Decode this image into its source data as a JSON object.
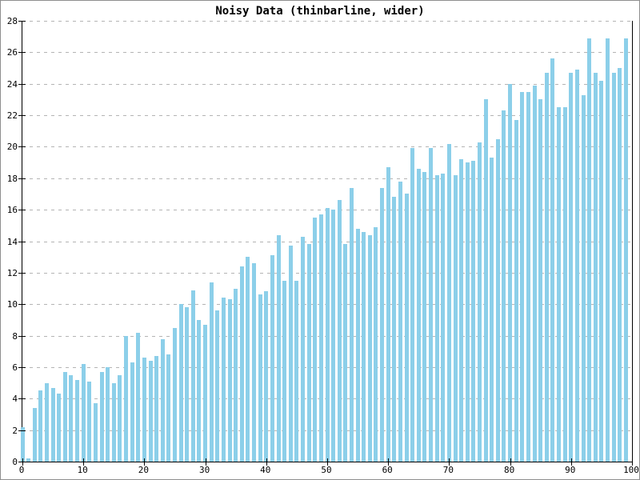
{
  "chart_data": {
    "type": "bar",
    "title": "Noisy Data (thinbarline, wider)",
    "xlabel": "",
    "ylabel": "",
    "x_start": 0,
    "x_step": 1,
    "values": [
      2.2,
      0.2,
      3.4,
      4.5,
      5.0,
      4.7,
      4.3,
      5.7,
      5.5,
      5.2,
      6.2,
      5.1,
      3.7,
      5.7,
      6.0,
      5.0,
      5.5,
      8.0,
      6.3,
      8.2,
      6.6,
      6.4,
      6.7,
      7.8,
      6.8,
      8.5,
      10.0,
      9.8,
      10.9,
      9.0,
      8.7,
      11.4,
      9.6,
      10.4,
      10.3,
      11.0,
      12.4,
      13.0,
      12.6,
      10.6,
      10.8,
      13.1,
      14.4,
      11.5,
      13.7,
      11.5,
      14.3,
      13.8,
      15.5,
      15.7,
      16.1,
      16.0,
      16.6,
      13.8,
      17.4,
      14.8,
      14.6,
      14.4,
      14.9,
      17.4,
      18.7,
      16.8,
      17.8,
      17.0,
      19.9,
      18.6,
      18.4,
      19.9,
      18.2,
      18.3,
      20.2,
      18.2,
      19.2,
      19.0,
      19.1,
      20.3,
      23.0,
      19.3,
      20.5,
      22.3,
      24.0,
      21.7,
      23.5,
      23.5,
      23.9,
      23.0,
      24.7,
      25.6,
      22.5,
      22.5,
      24.7,
      24.9,
      23.3,
      26.9,
      24.7,
      24.2,
      26.9,
      24.7,
      25.0,
      26.9
    ],
    "xlim": [
      0,
      100
    ],
    "ylim": [
      0,
      28
    ],
    "x_ticks": [
      0,
      10,
      20,
      30,
      40,
      50,
      60,
      70,
      80,
      90,
      100
    ],
    "y_ticks": [
      0,
      2,
      4,
      6,
      8,
      10,
      12,
      14,
      16,
      18,
      20,
      22,
      24,
      26,
      28
    ],
    "grid": "horizontal-dashed",
    "legend_position": "none",
    "colors": {
      "bar": "#8CCFE9",
      "grid": "#b4b4b4",
      "axis": "#000000",
      "background": "#ffffff",
      "frame": "#8e8e8e",
      "title_text": "#000000"
    }
  }
}
